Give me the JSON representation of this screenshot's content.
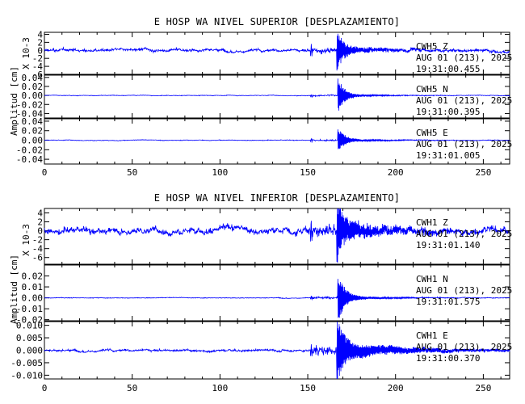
{
  "chart_data": [
    {
      "type": "line",
      "title": "E HOSP WA NIVEL SUPERIOR [DESPLAZAMIENTO]",
      "ylabel": "Amplitud [cm]",
      "xlim": [
        0,
        265
      ],
      "x_ticks": [
        "0",
        "50",
        "100",
        "150",
        "200",
        "250"
      ],
      "line_color": "#0000ff",
      "panels": [
        {
          "channel": "CWH5  Z",
          "date": "AUG 01 (213), 2025",
          "time": "19:31:00.455",
          "scale_label": "X 10-3",
          "ylim": [
            -6,
            4.5
          ],
          "y_ticks": [
            "4",
            "2",
            "0",
            "-2",
            "-4",
            "-6"
          ],
          "pre_noise": 0.45,
          "first_arrival_s": 151.5,
          "first_amp": 1.6,
          "main_arrival_s": 166.5,
          "peak_amp": 4.5,
          "coda_noise": 0.9,
          "coda_decay_s": 30
        },
        {
          "channel": "CWH5   N",
          "date": "AUG 01 (213), 2025",
          "time": "19:31:00.395",
          "ylim": [
            -0.05,
            0.045
          ],
          "y_ticks": [
            "0.04",
            "0.02",
            "0.00",
            "-0.02",
            "-0.04"
          ],
          "pre_noise": 0.0008,
          "first_arrival_s": 151.5,
          "first_amp": 0.003,
          "main_arrival_s": 167,
          "peak_amp": 0.04,
          "coda_noise": 0.003,
          "coda_decay_s": 25
        },
        {
          "channel": "CWH5   E",
          "date": "AUG 01 (213), 2025",
          "time": "19:31:01.005",
          "ylim": [
            -0.05,
            0.045
          ],
          "y_ticks": [
            "0.04",
            "0.02",
            "0.00",
            "-0.02",
            "-0.04"
          ],
          "pre_noise": 0.0008,
          "first_arrival_s": 151.5,
          "first_amp": 0.004,
          "main_arrival_s": 167,
          "peak_amp": 0.028,
          "coda_noise": 0.003,
          "coda_decay_s": 25
        }
      ]
    },
    {
      "type": "line",
      "title": "E HOSP WA NIVEL INFERIOR [DESPLAZAMIENTO]",
      "ylabel": "Amplitud [cm]",
      "xlim": [
        0,
        265
      ],
      "x_ticks": [
        "0",
        "50",
        "100",
        "150",
        "200",
        "250"
      ],
      "line_color": "#0000ff",
      "panels": [
        {
          "channel": "CWH1   Z",
          "date": "AUG 01 (213), 2025",
          "time": "19:31:01.140",
          "scale_label": "X 10-3",
          "ylim": [
            -7.5,
            5
          ],
          "y_ticks": [
            "4",
            "2",
            "0",
            "-2",
            "-4",
            "-6"
          ],
          "pre_noise": 0.9,
          "first_arrival_s": 151.5,
          "first_amp": 2.6,
          "main_arrival_s": 166.5,
          "peak_amp": 5.5,
          "coda_noise": 2.0,
          "coda_decay_s": 35
        },
        {
          "channel": "CWH1   N",
          "date": "AUG 01 (213), 2025",
          "time": "19:31:01.575",
          "ylim": [
            -0.021,
            0.03
          ],
          "y_ticks": [
            "0.02",
            "0.01",
            "0.00",
            "-0.01",
            "-0.02"
          ],
          "pre_noise": 0.0004,
          "first_arrival_s": 151.5,
          "first_amp": 0.0015,
          "main_arrival_s": 167,
          "peak_amp": 0.026,
          "coda_noise": 0.002,
          "coda_decay_s": 25
        },
        {
          "channel": "CWH1   E",
          "date": "AUG 01 (213), 2025",
          "time": "19:31:00.370",
          "ylim": [
            -0.0115,
            0.0115
          ],
          "y_ticks": [
            "0.010",
            "0.005",
            "0.000",
            "-0.005",
            "-0.010"
          ],
          "pre_noise": 0.0006,
          "first_arrival_s": 151.5,
          "first_amp": 0.0035,
          "main_arrival_s": 166.5,
          "peak_amp": 0.012,
          "coda_noise": 0.0035,
          "coda_decay_s": 40
        }
      ]
    }
  ]
}
